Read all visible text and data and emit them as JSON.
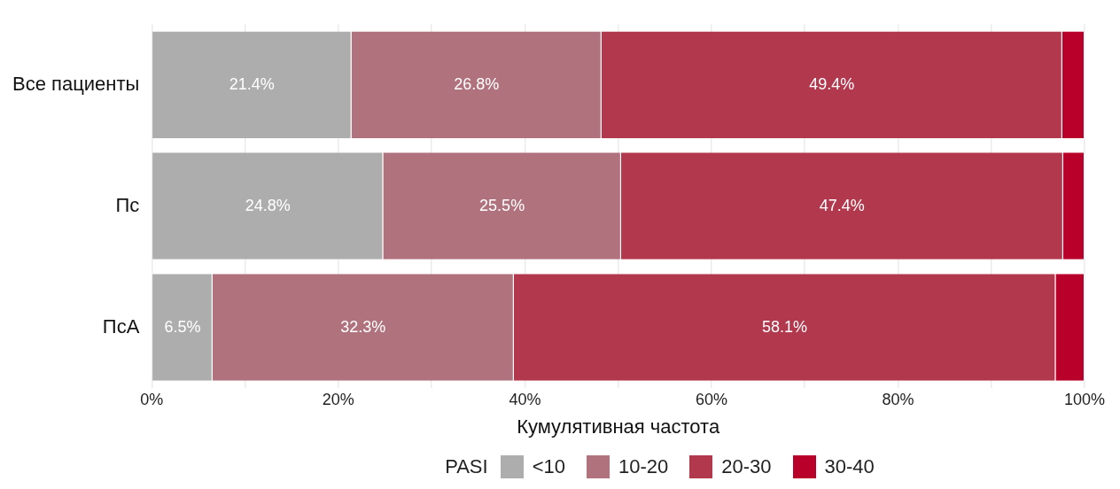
{
  "chart_data": {
    "type": "bar",
    "orientation": "horizontal",
    "stacked": true,
    "xlabel": "Кумулятивная частота",
    "legend_title": "PASI",
    "legend": "bottom",
    "grid": "x",
    "categories": [
      "Все пациенты",
      "Пс",
      "ПсА"
    ],
    "xlim": [
      0,
      100
    ],
    "xticks": [
      {
        "value": 0,
        "label": "0%"
      },
      {
        "value": 10,
        "label": null
      },
      {
        "value": 20,
        "label": "20%"
      },
      {
        "value": 30,
        "label": null
      },
      {
        "value": 40,
        "label": "40%"
      },
      {
        "value": 50,
        "label": null
      },
      {
        "value": 60,
        "label": "60%"
      },
      {
        "value": 70,
        "label": null
      },
      {
        "value": 80,
        "label": "80%"
      },
      {
        "value": 90,
        "label": null
      },
      {
        "value": 100,
        "label": "100%"
      }
    ],
    "series": [
      {
        "name": "<10",
        "color": "#adadad",
        "values": [
          21.4,
          24.8,
          6.5
        ],
        "value_labels": [
          "21.4%",
          "24.8%",
          "6.5%"
        ]
      },
      {
        "name": "10-20",
        "color": "#b0737e",
        "values": [
          26.8,
          25.5,
          32.3
        ],
        "value_labels": [
          "26.8%",
          "25.5%",
          "32.3%"
        ]
      },
      {
        "name": "20-30",
        "color": "#b2384e",
        "values": [
          49.4,
          47.4,
          58.1
        ],
        "value_labels": [
          "49.4%",
          "47.4%",
          "58.1%"
        ]
      },
      {
        "name": "30-40",
        "color": "#b8002a",
        "values": [
          2.4,
          2.3,
          3.1
        ],
        "value_labels": [
          null,
          null,
          null
        ]
      }
    ]
  }
}
